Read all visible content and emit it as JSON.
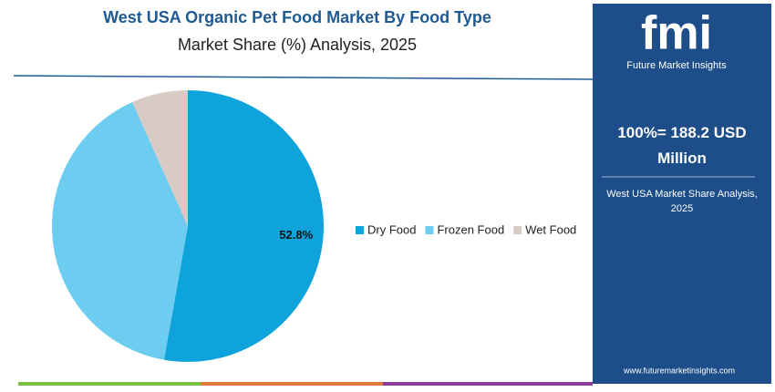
{
  "chart_data": {
    "type": "pie",
    "title": "West USA Organic Pet Food Market By Food Type",
    "subtitle": "Market Share (%) Analysis, 2025",
    "categories": [
      "Dry Food",
      "Frozen Food",
      "Wet Food"
    ],
    "values": [
      52.8,
      40.5,
      6.7
    ],
    "value_labels": [
      "52.8%",
      null,
      null
    ],
    "colors": [
      "#0ea3da",
      "#6dcdf1",
      "#d8cbc6"
    ],
    "legend": "right"
  },
  "panel": {
    "logo": "fmi",
    "brand": "Future Market Insights",
    "total": "100%= 188.2 USD Million",
    "caption": "West USA Market Share Analysis, 2025",
    "url": "www.futuremarketinsights.com"
  }
}
